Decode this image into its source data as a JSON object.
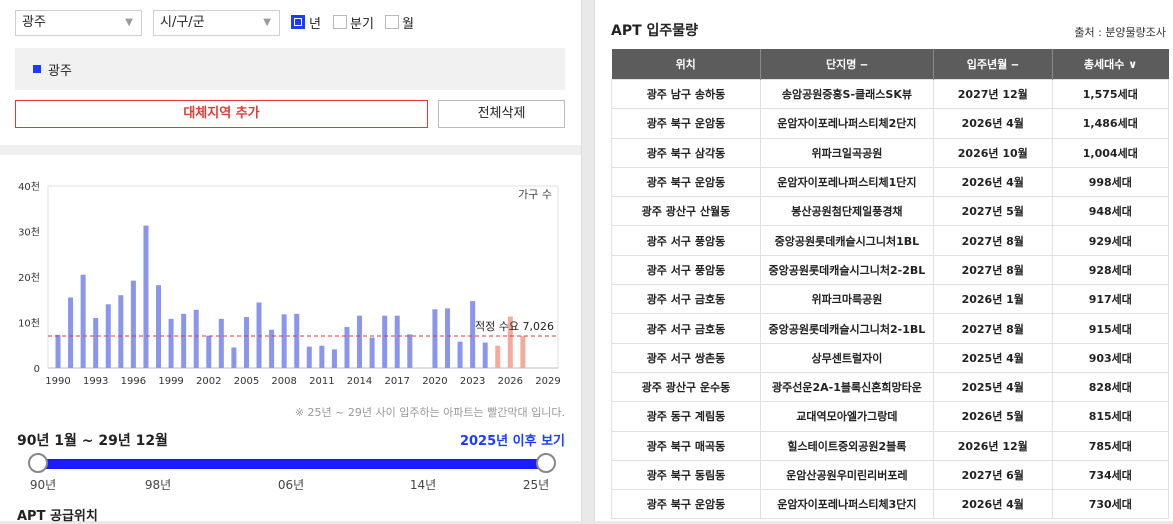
{
  "filters": {
    "region_select": "광주",
    "district_select": "시/구/군",
    "period_options": [
      {
        "label": "년",
        "checked": true
      },
      {
        "label": "분기",
        "checked": false
      },
      {
        "label": "월",
        "checked": false
      }
    ]
  },
  "selected_region": "광주",
  "buttons": {
    "add_region": "대체지역 추가",
    "delete_all": "전체삭제"
  },
  "chart_data": {
    "type": "bar",
    "legend": "가구 수",
    "y_ticks": [
      "0",
      "10천",
      "20천",
      "30천",
      "40천"
    ],
    "ylim": [
      0,
      40000
    ],
    "x_ticks": [
      "1990",
      "1993",
      "1996",
      "1999",
      "2002",
      "2005",
      "2008",
      "2011",
      "2014",
      "2017",
      "2020",
      "2023",
      "2026",
      "2029"
    ],
    "years": [
      1990,
      1991,
      1992,
      1993,
      1994,
      1995,
      1996,
      1997,
      1998,
      1999,
      2000,
      2001,
      2002,
      2003,
      2004,
      2005,
      2006,
      2007,
      2008,
      2009,
      2010,
      2011,
      2012,
      2013,
      2014,
      2015,
      2016,
      2017,
      2018,
      2019,
      2020,
      2021,
      2022,
      2023,
      2024,
      2025,
      2026,
      2027,
      2028,
      2029
    ],
    "values": [
      7300,
      15500,
      20500,
      11000,
      14000,
      16000,
      19200,
      31300,
      18200,
      10800,
      11900,
      12800,
      7100,
      10800,
      4500,
      11200,
      14400,
      8400,
      11800,
      11900,
      4700,
      4900,
      4100,
      9000,
      11500,
      6700,
      11500,
      11500,
      7400,
      0,
      12900,
      13100,
      5800,
      14700,
      5600,
      4900,
      11300,
      7000,
      0,
      0
    ],
    "forecast_from": 2025,
    "colors": {
      "actual": "#8a95ee",
      "forecast": "#f4ab9a",
      "demand_line": "#e53935"
    },
    "demand_label": "적정 수요 7,026",
    "demand_value": 7026,
    "note": "※ 25년 ~ 29년 사이 입주하는 아파트는 빨간막대 입니다."
  },
  "period": {
    "range": "90년 1월 ~ 29년 12월",
    "after_link": "2025년 이후 보기"
  },
  "slider": {
    "ticks": [
      "90년",
      "98년",
      "06년",
      "14년",
      "25년"
    ]
  },
  "supply_title": "APT 공급위치",
  "apt": {
    "title": "APT 입주물량",
    "source": "출처 : 분양물량조사",
    "headers": [
      "위치",
      "단지명 ‒",
      "입주년월 ‒",
      "총세대수 ∨"
    ],
    "rows": [
      [
        "광주 남구 송하동",
        "송암공원중흥S-클래스SK뷰",
        "2027년 12월",
        "1,575세대"
      ],
      [
        "광주 북구 운암동",
        "운암자이포레나퍼스티체2단지",
        "2026년 4월",
        "1,486세대"
      ],
      [
        "광주 북구 삼각동",
        "위파크일곡공원",
        "2026년 10월",
        "1,004세대"
      ],
      [
        "광주 북구 운암동",
        "운암자이포레나퍼스티체1단지",
        "2026년 4월",
        "998세대"
      ],
      [
        "광주 광산구 산월동",
        "봉산공원첨단제일풍경채",
        "2027년 5월",
        "948세대"
      ],
      [
        "광주 서구 풍암동",
        "중앙공원롯데캐슬시그니처1BL",
        "2027년 8월",
        "929세대"
      ],
      [
        "광주 서구 풍암동",
        "중앙공원롯데캐슬시그니처2-2BL",
        "2027년 8월",
        "928세대"
      ],
      [
        "광주 서구 금호동",
        "위파크마륵공원",
        "2026년 1월",
        "917세대"
      ],
      [
        "광주 서구 금호동",
        "중앙공원롯데캐슬시그니처2-1BL",
        "2027년 8월",
        "915세대"
      ],
      [
        "광주 서구 쌍촌동",
        "상무센트럴자이",
        "2025년 4월",
        "903세대"
      ],
      [
        "광주 광산구 운수동",
        "광주선운2A-1블록신혼희망타운",
        "2025년 4월",
        "828세대"
      ],
      [
        "광주 동구 계림동",
        "교대역모아엘가그랑데",
        "2026년 5월",
        "815세대"
      ],
      [
        "광주 북구 매곡동",
        "힐스테이트중외공원2블록",
        "2026년 12월",
        "785세대"
      ],
      [
        "광주 북구 동림동",
        "운암산공원우미린리버포레",
        "2027년 6월",
        "734세대"
      ],
      [
        "광주 북구 운암동",
        "운암자이포레나퍼스티체3단지",
        "2026년 4월",
        "730세대"
      ]
    ]
  }
}
